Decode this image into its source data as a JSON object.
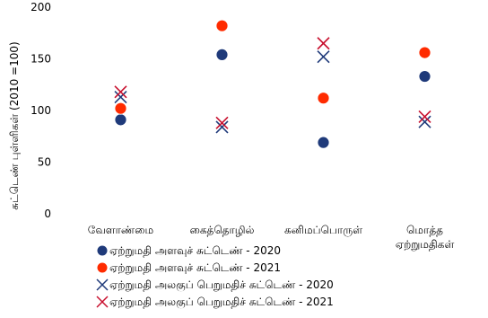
{
  "chart_data": {
    "type": "scatter",
    "ylabel": "சுட்டெண் புள்ளிகள் (2010 =100)",
    "ylim": [
      0,
      200
    ],
    "yticks": [
      "0",
      "50",
      "100",
      "150",
      "200"
    ],
    "grid": false,
    "legend_position": "bottom",
    "categories": [
      [
        "வேளாண்மை"
      ],
      [
        "கைத்தொழில்"
      ],
      [
        "கனிமப்பொருள்"
      ],
      [
        "மொத்த",
        "ஏற்றுமதிகள்"
      ]
    ],
    "series": [
      {
        "name": "ஏற்றுமதி அளவுச் சுட்டெண் - 2020",
        "marker": "circle",
        "color": "#1f3a7a",
        "values": [
          91,
          154,
          69,
          133
        ]
      },
      {
        "name": "ஏற்றுமதி அளவுச் சுட்டெண் - 2021",
        "marker": "circle",
        "color": "#ff2b00",
        "values": [
          102,
          182,
          112,
          156
        ]
      },
      {
        "name": "ஏற்றுமதி அலகுப் பெறுமதிச் சுட்டெண் - 2020",
        "marker": "x",
        "color": "#1f3a7a",
        "values": [
          113,
          84,
          152,
          89
        ]
      },
      {
        "name": "ஏற்றுமதி அலகுப் பெறுமதிச் சுட்டெண் - 2021",
        "marker": "x",
        "color": "#c8102e",
        "values": [
          118,
          88,
          165,
          94
        ]
      }
    ]
  }
}
